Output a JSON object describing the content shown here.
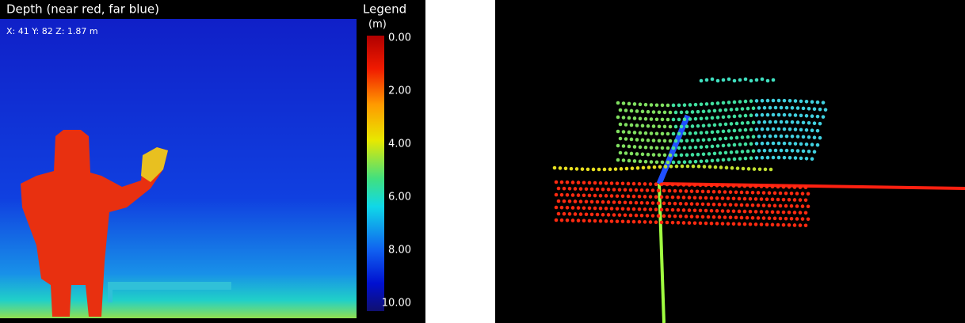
{
  "depth_view": {
    "title": "Depth (near red, far blue)",
    "readout": "X: 41 Y: 82 Z: 1.87 m",
    "legend": {
      "title": "Legend",
      "unit": "(m)",
      "labels": [
        "0.00",
        "2.00",
        "4.00",
        "6.00",
        "8.00",
        "10.00"
      ]
    }
  }
}
